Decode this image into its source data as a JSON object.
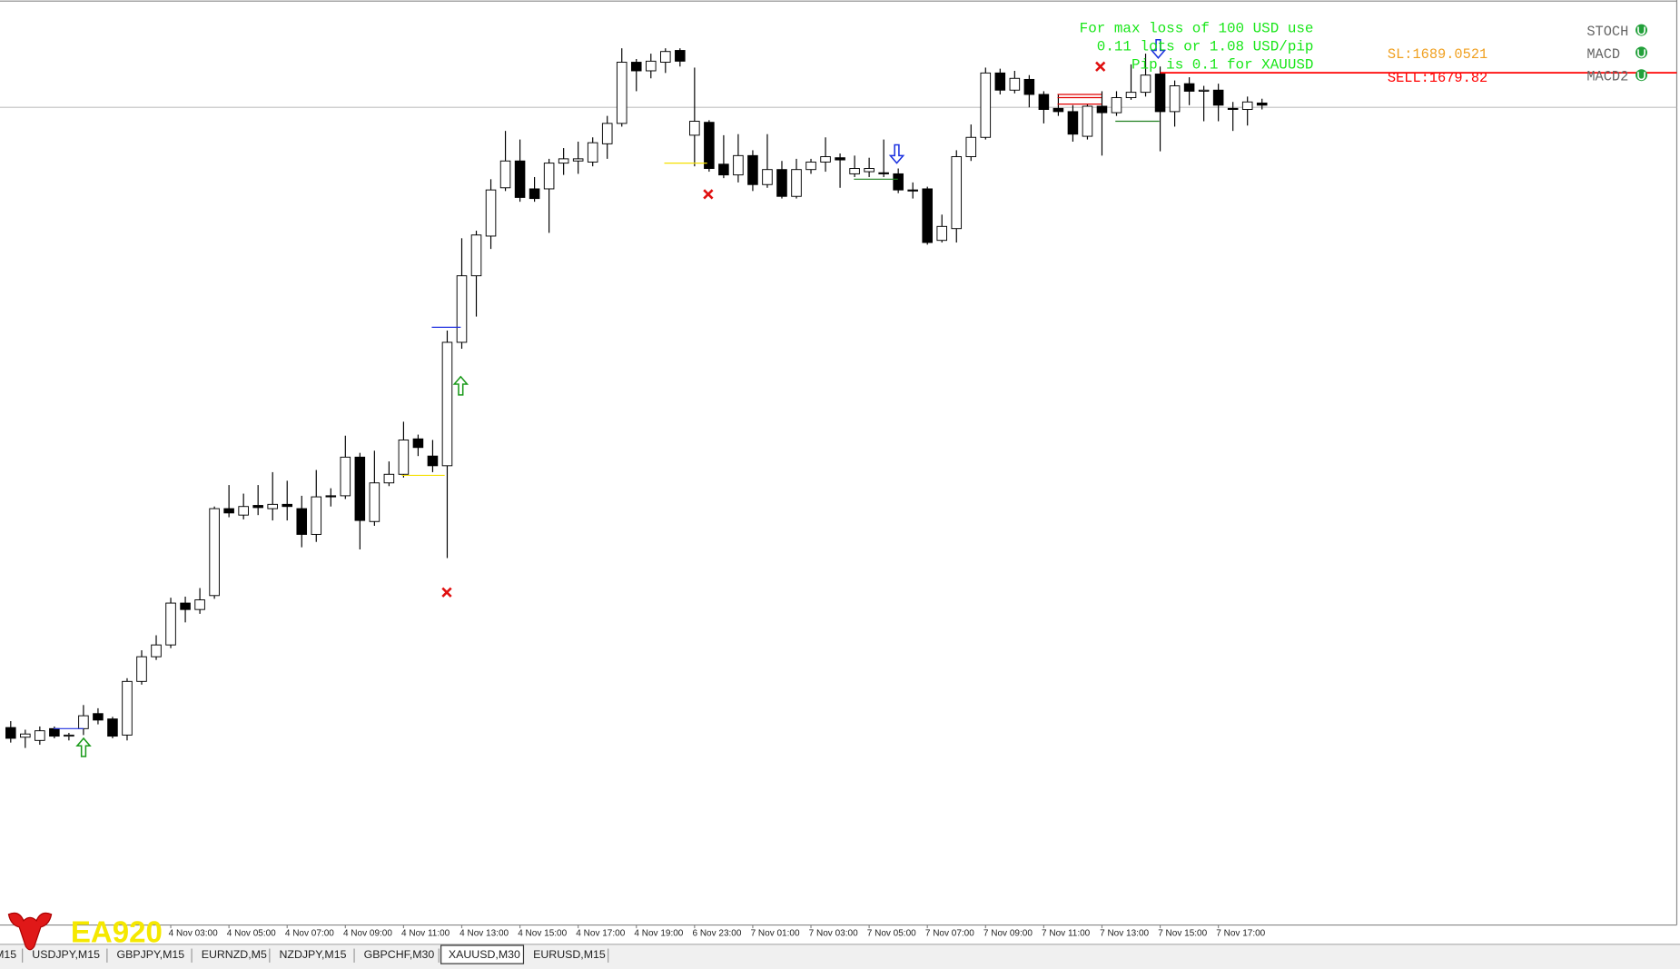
{
  "chart_data": {
    "type": "candlestick",
    "categories": [
      null,
      null,
      null,
      null,
      null,
      null,
      null,
      null,
      null,
      null,
      null,
      "4 Nov 03:00",
      null,
      null,
      null,
      "4 Nov 05:00",
      null,
      null,
      null,
      "4 Nov 07:00",
      null,
      null,
      null,
      "4 Nov 09:00",
      null,
      null,
      null,
      "4 Nov 11:00",
      null,
      null,
      null,
      "4 Nov 13:00",
      null,
      null,
      null,
      "4 Nov 15:00",
      null,
      null,
      null,
      "4 Nov 17:00",
      null,
      null,
      null,
      "4 Nov 19:00",
      null,
      null,
      null,
      "6 Nov 23:00",
      null,
      null,
      null,
      "7 Nov 01:00",
      null,
      null,
      null,
      "7 Nov 03:00",
      null,
      null,
      null,
      "7 Nov 05:00",
      null,
      null,
      null,
      "7 Nov 07:00",
      null,
      null,
      null,
      "7 Nov 09:00",
      null,
      null,
      null,
      "7 Nov 11:00",
      null,
      null,
      null,
      "7 Nov 13:00",
      null,
      null,
      null,
      "7 Nov 15:00",
      null,
      null,
      null,
      "7 Nov 17:00",
      null,
      null,
      null
    ],
    "open": [
      1618.8,
      1617.9,
      1617.6,
      1618.7,
      1618.0,
      1618.7,
      1620.1,
      1619.6,
      1618.1,
      1623.1,
      1625.4,
      1626.5,
      1630.4,
      1629.8,
      1631.1,
      1639.2,
      1638.6,
      1639.5,
      1639.2,
      1639.6,
      1639.2,
      1636.8,
      1640.4,
      1640.4,
      1644.0,
      1638.0,
      1641.6,
      1642.4,
      1645.7,
      1644.1,
      1643.2,
      1654.7,
      1660.9,
      1664.6,
      1669.1,
      1671.6,
      1669.0,
      1669.0,
      1671.4,
      1671.6,
      1671.5,
      1673.2,
      1675.1,
      1680.8,
      1680.0,
      1680.8,
      1681.9,
      1674.0,
      1675.2,
      1671.3,
      1670.3,
      1672.1,
      1669.4,
      1670.8,
      1668.3,
      1670.8,
      1671.5,
      1671.9,
      1670.4,
      1670.6,
      1670.5,
      1670.4,
      1668.9,
      1669.0,
      1664.2,
      1665.3,
      1672.0,
      1673.8,
      1679.8,
      1678.2,
      1679.2,
      1677.8,
      1676.5,
      1676.2,
      1673.9,
      1676.7,
      1676.1,
      1677.5,
      1678.0,
      1679.7,
      1676.2,
      1678.8,
      1678.1,
      1678.2,
      1676.5,
      1676.4,
      1677.0
    ],
    "high": [
      1619.4,
      1618.6,
      1618.9,
      1618.9,
      1618.3,
      1620.9,
      1620.6,
      1619.8,
      1623.4,
      1626.0,
      1627.4,
      1630.9,
      1631.0,
      1631.8,
      1639.4,
      1641.4,
      1640.6,
      1641.4,
      1642.6,
      1641.8,
      1640.4,
      1642.8,
      1641.1,
      1646.0,
      1644.4,
      1644.6,
      1643.6,
      1647.3,
      1646.1,
      1645.6,
      1655.8,
      1664.4,
      1665.1,
      1669.9,
      1674.4,
      1673.6,
      1670.1,
      1671.8,
      1672.8,
      1673.4,
      1673.8,
      1675.8,
      1682.1,
      1681.1,
      1681.6,
      1682.1,
      1682.1,
      1680.3,
      1675.4,
      1674.0,
      1674.1,
      1672.6,
      1674.1,
      1671.6,
      1671.8,
      1671.8,
      1673.8,
      1672.3,
      1672.1,
      1671.9,
      1673.6,
      1670.9,
      1669.6,
      1669.2,
      1666.6,
      1672.6,
      1675.0,
      1680.3,
      1680.2,
      1680.0,
      1679.6,
      1678.1,
      1677.8,
      1676.8,
      1676.9,
      1678.1,
      1678.1,
      1680.6,
      1681.6,
      1680.4,
      1679.1,
      1679.4,
      1678.6,
      1678.8,
      1677.1,
      1677.6,
      1677.4
    ],
    "low": [
      1617.4,
      1616.9,
      1617.2,
      1617.8,
      1617.6,
      1618.1,
      1619.1,
      1617.8,
      1617.6,
      1622.8,
      1625.1,
      1626.2,
      1628.6,
      1629.4,
      1630.8,
      1638.4,
      1638.2,
      1638.6,
      1638.1,
      1638.1,
      1635.6,
      1636.1,
      1639.4,
      1640.1,
      1635.4,
      1637.6,
      1641.3,
      1642.1,
      1644.1,
      1642.6,
      1634.6,
      1654.1,
      1657.1,
      1663.4,
      1668.8,
      1667.8,
      1667.8,
      1664.9,
      1670.3,
      1670.4,
      1671.1,
      1671.8,
      1674.8,
      1678.1,
      1679.3,
      1679.8,
      1680.4,
      1671.1,
      1670.6,
      1670.0,
      1669.6,
      1668.8,
      1669.1,
      1668.1,
      1668.1,
      1670.4,
      1670.6,
      1669.1,
      1670.1,
      1670.1,
      1670.1,
      1668.6,
      1668.1,
      1663.8,
      1664.0,
      1664.0,
      1671.6,
      1673.6,
      1677.8,
      1677.9,
      1676.6,
      1675.1,
      1675.8,
      1673.4,
      1673.6,
      1672.1,
      1675.8,
      1677.3,
      1677.6,
      1672.5,
      1674.8,
      1676.8,
      1675.3,
      1675.3,
      1674.4,
      1674.9,
      1676.4
    ],
    "close": [
      1617.8,
      1618.2,
      1618.5,
      1618.0,
      1618.1,
      1619.9,
      1619.5,
      1618.0,
      1623.1,
      1625.4,
      1626.5,
      1630.4,
      1629.8,
      1630.7,
      1639.2,
      1638.8,
      1639.4,
      1639.3,
      1639.6,
      1639.4,
      1636.8,
      1640.3,
      1640.3,
      1644.0,
      1638.1,
      1641.6,
      1642.4,
      1645.6,
      1644.9,
      1643.2,
      1654.7,
      1660.9,
      1664.7,
      1668.9,
      1671.6,
      1668.2,
      1668.1,
      1671.4,
      1671.8,
      1671.8,
      1673.3,
      1675.1,
      1680.8,
      1680.0,
      1680.9,
      1681.8,
      1680.9,
      1675.3,
      1670.9,
      1670.3,
      1672.1,
      1669.4,
      1670.8,
      1668.3,
      1670.8,
      1671.5,
      1672.0,
      1671.7,
      1670.9,
      1670.9,
      1670.4,
      1668.9,
      1668.8,
      1664.0,
      1665.5,
      1672.0,
      1673.8,
      1679.8,
      1678.2,
      1679.3,
      1677.8,
      1676.4,
      1676.2,
      1674.1,
      1676.7,
      1676.1,
      1677.5,
      1678.0,
      1679.6,
      1676.2,
      1678.6,
      1678.1,
      1678.2,
      1676.8,
      1676.4,
      1677.1,
      1676.8
    ],
    "ylim": [
      1600.4,
      1686.6
    ],
    "up_color": "#ffffff",
    "down_color": "#000000",
    "bid": 1676.6,
    "orders": [
      {
        "label": "SL:1689.0521",
        "price": 1689.0521,
        "color": "#f0a020"
      },
      {
        "label": "SELL:1679.82",
        "price": 1679.82,
        "color": "#ff0000"
      }
    ]
  },
  "info_lines": [
    "For max loss of 100 USD use",
    "0.11 lots or 1.08 USD/pip",
    "Pip is 0.1 for XAUUSD"
  ],
  "indicators": [
    "STOCH",
    "MACD",
    "MACD2"
  ],
  "tabs": [
    {
      "label": "M15",
      "active": false
    },
    {
      "label": "USDJPY,M15",
      "active": false
    },
    {
      "label": "GBPJPY,M15",
      "active": false
    },
    {
      "label": "EURNZD,M5",
      "active": false
    },
    {
      "label": "NZDJPY,M15",
      "active": false
    },
    {
      "label": "GBPCHF,M30",
      "active": false
    },
    {
      "label": "XAUUSD,M30",
      "active": true
    },
    {
      "label": "EURUSD,M15",
      "active": false
    }
  ],
  "logo": "EA920"
}
